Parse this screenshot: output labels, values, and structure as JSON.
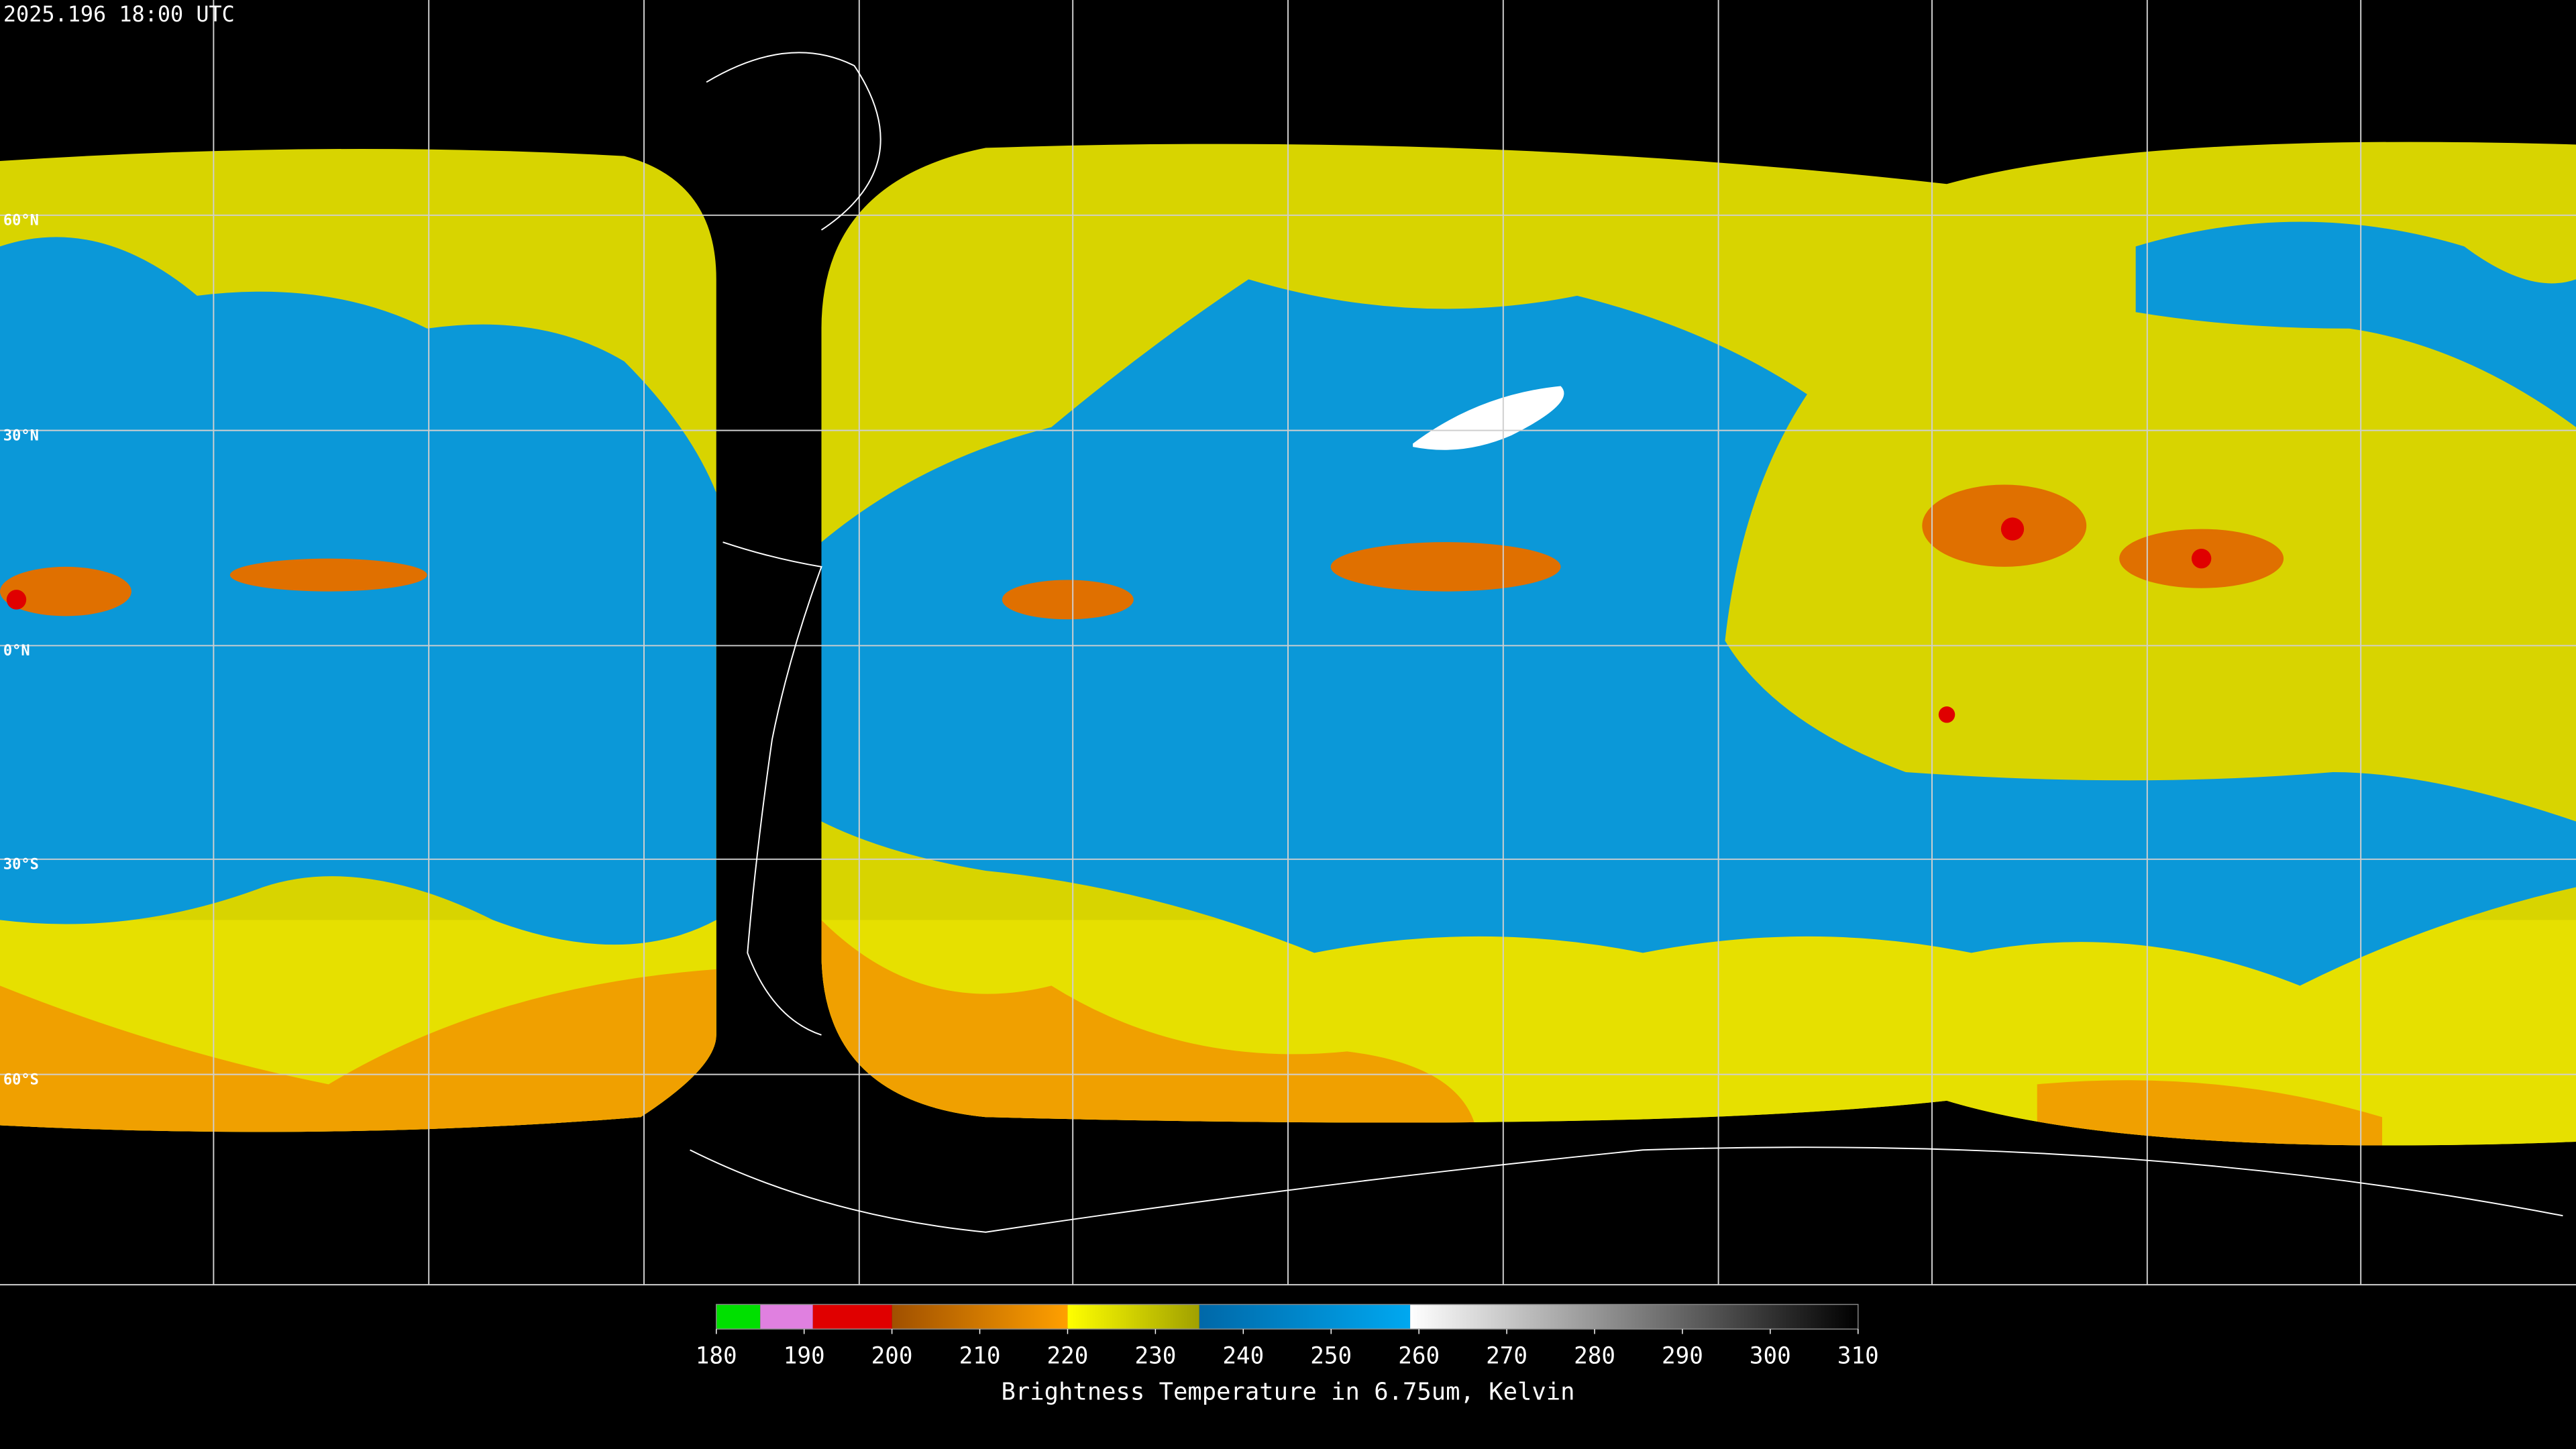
{
  "header": {
    "timestamp": "2025.196 18:00 UTC"
  },
  "map": {
    "latitude_labels": [
      "60°N",
      "30°N",
      "0°N",
      "30°S",
      "60°S"
    ]
  },
  "colorbar": {
    "range": [
      180,
      310
    ],
    "ticks": [
      180,
      190,
      200,
      210,
      220,
      230,
      240,
      250,
      260,
      270,
      280,
      290,
      300,
      310
    ],
    "segments": [
      {
        "from": 180,
        "to": 185,
        "colors": [
          "#00e000",
          "#00e000"
        ]
      },
      {
        "from": 185,
        "to": 191,
        "colors": [
          "#e080e0",
          "#e080e0"
        ]
      },
      {
        "from": 191,
        "to": 200,
        "colors": [
          "#e00000",
          "#e00000"
        ]
      },
      {
        "from": 200,
        "to": 220,
        "colors": [
          "#a05000",
          "#ffa000"
        ]
      },
      {
        "from": 220,
        "to": 235,
        "colors": [
          "#ffff00",
          "#a0a000"
        ]
      },
      {
        "from": 235,
        "to": 259,
        "colors": [
          "#0068a8",
          "#00a8f0"
        ]
      },
      {
        "from": 259,
        "to": 310,
        "colors": [
          "#ffffff",
          "#000000"
        ]
      }
    ],
    "label": "Brightness Temperature in 6.75um, Kelvin"
  }
}
